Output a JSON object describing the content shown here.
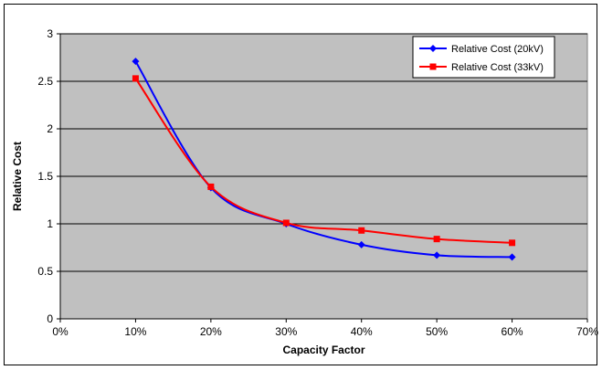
{
  "chart_data": {
    "type": "line",
    "xlabel": "Capacity Factor",
    "ylabel": "Relative Cost",
    "xlim": [
      0,
      70
    ],
    "ylim": [
      0,
      3
    ],
    "x_ticks": [
      0,
      10,
      20,
      30,
      40,
      50,
      60,
      70
    ],
    "x_tick_labels": [
      "0%",
      "10%",
      "20%",
      "30%",
      "40%",
      "50%",
      "60%",
      "70%"
    ],
    "y_ticks": [
      0,
      0.5,
      1,
      1.5,
      2,
      2.5,
      3
    ],
    "y_tick_labels": [
      "0",
      "0.5",
      "1",
      "1.5",
      "2",
      "2.5",
      "3"
    ],
    "grid": "horizontal",
    "legend_position": "top-right",
    "plot_background": "#c0c0c0",
    "series": [
      {
        "name": "Relative Cost (20kV)",
        "color": "#0000ff",
        "marker": "diamond",
        "x": [
          10,
          20,
          30,
          40,
          50,
          60
        ],
        "y": [
          2.71,
          1.38,
          1.0,
          0.78,
          0.67,
          0.65
        ]
      },
      {
        "name": "Relative Cost (33kV)",
        "color": "#ff0000",
        "marker": "square",
        "x": [
          10,
          20,
          30,
          40,
          50,
          60
        ],
        "y": [
          2.53,
          1.39,
          1.01,
          0.93,
          0.84,
          0.8
        ]
      }
    ]
  }
}
